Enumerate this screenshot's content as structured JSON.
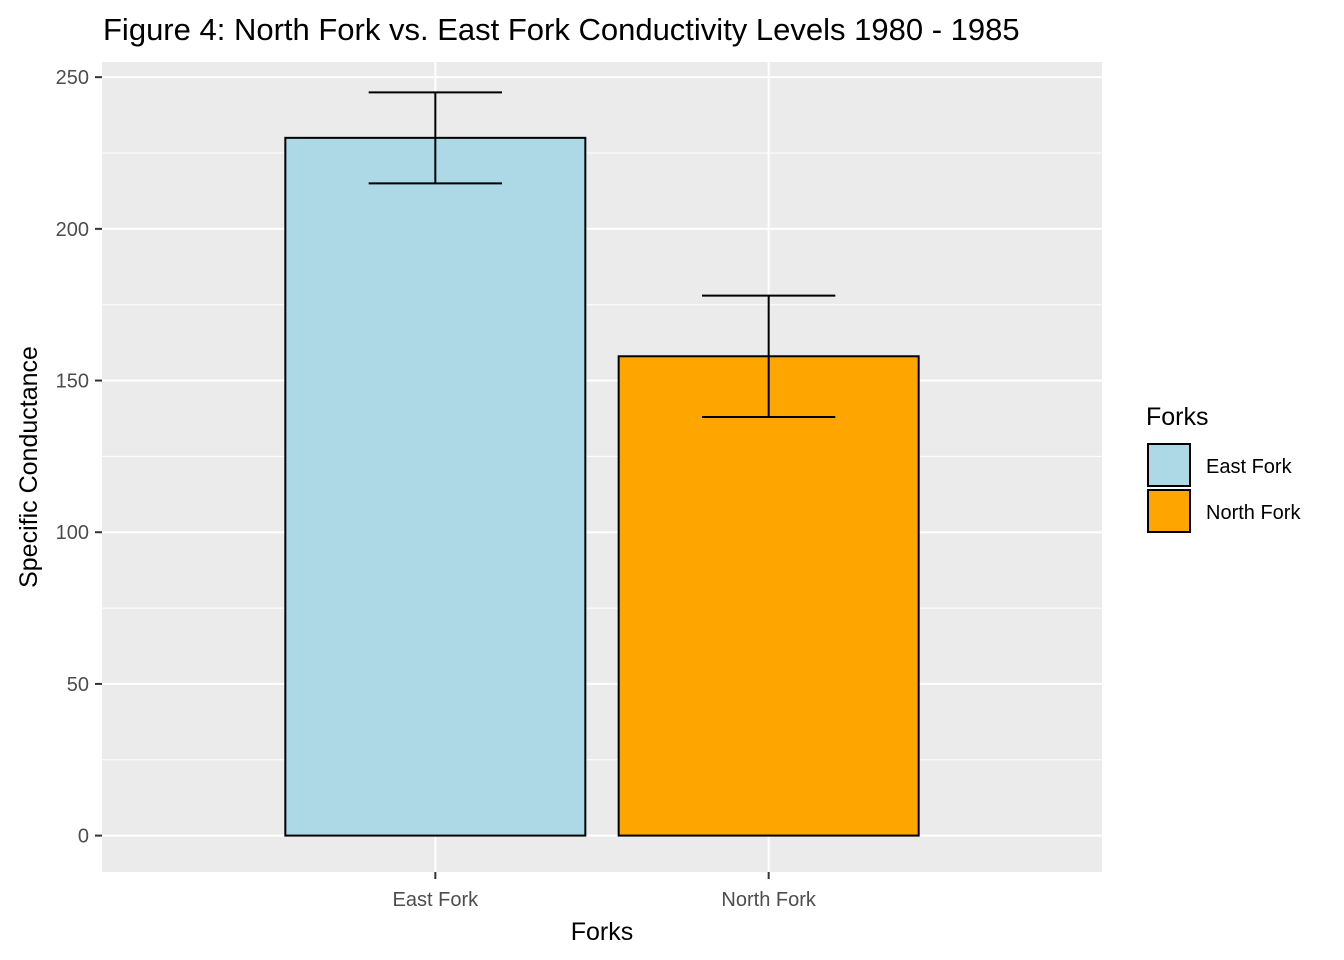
{
  "chart_data": {
    "type": "bar",
    "title": "Figure 4: North Fork vs. East Fork Conductivity Levels 1980 - 1985",
    "xlabel": "Forks",
    "ylabel": "Specific Conductance",
    "categories": [
      "East Fork",
      "North Fork"
    ],
    "values": [
      230,
      158
    ],
    "error_bars": [
      {
        "low": 215,
        "high": 245
      },
      {
        "low": 138,
        "high": 178
      }
    ],
    "colors": [
      "#add8e6",
      "#ffa500"
    ],
    "ylim": [
      -12,
      255
    ],
    "yticks": [
      0,
      50,
      100,
      150,
      200,
      250
    ],
    "grid": true,
    "legend": {
      "title": "Forks",
      "placement": "right",
      "entries": [
        "East Fork",
        "North Fork"
      ]
    }
  }
}
